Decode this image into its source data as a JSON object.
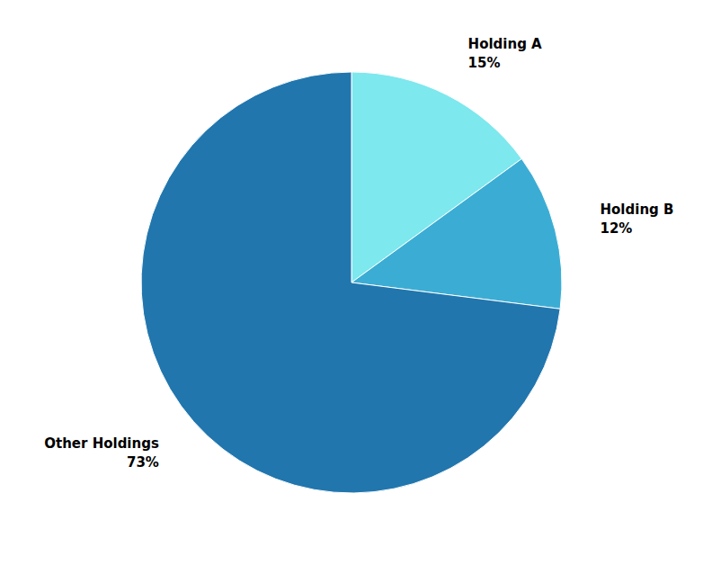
{
  "chart_data": {
    "type": "pie",
    "categories": [
      "Holding A",
      "Holding B",
      "Other Holdings"
    ],
    "values": [
      15,
      12,
      73
    ],
    "value_labels": [
      "15%",
      "12%",
      "73%"
    ],
    "colors": [
      "#7DE8EE",
      "#3BADD4",
      "#2176AE"
    ],
    "data_labels": true
  }
}
